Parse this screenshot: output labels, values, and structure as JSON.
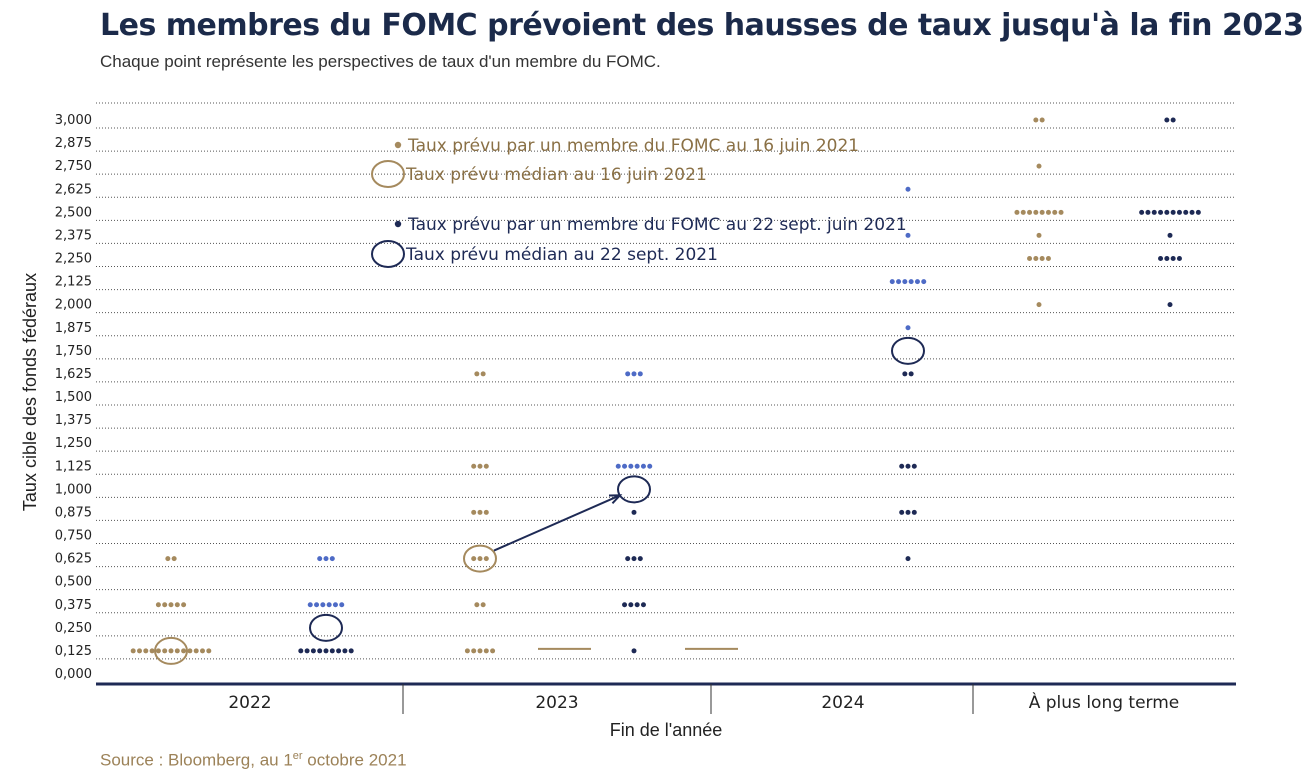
{
  "title": "Les membres du FOMC prévoient des hausses de taux jusqu'à la fin 2023",
  "subtitle": "Chaque point représente les perspectives de taux d'un membre du FOMC.",
  "source": {
    "text": "Source : Bloomberg, au 1",
    "sup": "er",
    "tail": " octobre 2021"
  },
  "colors": {
    "june": "#a58a5e",
    "sept": "#1e2a55",
    "sept_light": "#4e6bc6",
    "grid": "#555555",
    "axis": "#1e2a55"
  },
  "chart_data": {
    "type": "scatter",
    "title": "Les membres du FOMC prévoient des hausses de taux jusqu'à la fin 2023",
    "subtitle": "Chaque point représente les perspectives de taux d'un membre du FOMC.",
    "xlabel": "Fin de l'année",
    "ylabel": "Taux cible des fonds fédéraux",
    "categories": [
      "2022",
      "2023",
      "2024",
      "À plus long terme"
    ],
    "ylim": [
      0,
      3
    ],
    "yticks": [
      "0,000",
      "0,125",
      "0,250",
      "0,375",
      "0,500",
      "0,625",
      "0,750",
      "0,875",
      "1,000",
      "1,125",
      "1,250",
      "1,375",
      "1,500",
      "1,625",
      "1,750",
      "1,875",
      "2,000",
      "2,125",
      "2,250",
      "2,375",
      "2,500",
      "2,625",
      "2,750",
      "2,875",
      "3,000"
    ],
    "grid": true,
    "legend": [
      {
        "label": "Taux prévu par un membre du FOMC au 16 juin 2021",
        "kind": "dot",
        "series": "june"
      },
      {
        "label": "Taux prévu médian au 16 juin 2021",
        "kind": "ring",
        "series": "june"
      },
      {
        "label": "Taux prévu par un membre du FOMC au 22 sept. juin 2021",
        "kind": "dot",
        "series": "sept"
      },
      {
        "label": "Taux prévu médian au 22 sept. 2021",
        "kind": "ring",
        "series": "sept"
      }
    ],
    "series": [
      {
        "id": "june",
        "points": [
          {
            "category": "2022",
            "y": 0.125,
            "count": 13
          },
          {
            "category": "2022",
            "y": 0.375,
            "count": 5
          },
          {
            "category": "2022",
            "y": 0.625,
            "count": 2
          },
          {
            "category": "2023",
            "y": 0.125,
            "count": 5
          },
          {
            "category": "2023",
            "y": 0.375,
            "count": 2
          },
          {
            "category": "2023",
            "y": 0.625,
            "count": 3
          },
          {
            "category": "2023",
            "y": 0.875,
            "count": 3
          },
          {
            "category": "2023",
            "y": 1.125,
            "count": 3
          },
          {
            "category": "2023",
            "y": 1.625,
            "count": 2
          },
          {
            "category": "À plus long terme",
            "y": 2.0,
            "count": 1
          },
          {
            "category": "À plus long terme",
            "y": 2.25,
            "count": 4
          },
          {
            "category": "À plus long terme",
            "y": 2.375,
            "count": 1
          },
          {
            "category": "À plus long terme",
            "y": 2.5,
            "count": 8
          },
          {
            "category": "À plus long terme",
            "y": 2.75,
            "count": 1
          },
          {
            "category": "À plus long terme",
            "y": 3.0,
            "count": 2
          }
        ]
      },
      {
        "id": "sept",
        "points": [
          {
            "category": "2022",
            "y": 0.125,
            "count": 9,
            "shade": "dark"
          },
          {
            "category": "2022",
            "y": 0.375,
            "count": 6,
            "shade": "light"
          },
          {
            "category": "2022",
            "y": 0.625,
            "count": 3,
            "shade": "light"
          },
          {
            "category": "2023",
            "y": 0.125,
            "count": 1,
            "shade": "dark"
          },
          {
            "category": "2023",
            "y": 0.375,
            "count": 4,
            "shade": "dark"
          },
          {
            "category": "2023",
            "y": 0.625,
            "count": 3,
            "shade": "dark"
          },
          {
            "category": "2023",
            "y": 0.875,
            "count": 1,
            "shade": "dark"
          },
          {
            "category": "2023",
            "y": 1.125,
            "count": 6,
            "shade": "light"
          },
          {
            "category": "2023",
            "y": 1.625,
            "count": 3,
            "shade": "light"
          },
          {
            "category": "2024",
            "y": 0.625,
            "count": 1,
            "shade": "dark"
          },
          {
            "category": "2024",
            "y": 0.875,
            "count": 3,
            "shade": "dark"
          },
          {
            "category": "2024",
            "y": 1.125,
            "count": 3,
            "shade": "dark"
          },
          {
            "category": "2024",
            "y": 1.625,
            "count": 2,
            "shade": "dark"
          },
          {
            "category": "2024",
            "y": 1.875,
            "count": 1,
            "shade": "light"
          },
          {
            "category": "2024",
            "y": 2.125,
            "count": 6,
            "shade": "light"
          },
          {
            "category": "2024",
            "y": 2.375,
            "count": 1,
            "shade": "light"
          },
          {
            "category": "2024",
            "y": 2.625,
            "count": 1,
            "shade": "light"
          },
          {
            "category": "À plus long terme",
            "y": 2.0,
            "count": 1,
            "shade": "dark"
          },
          {
            "category": "À plus long terme",
            "y": 2.25,
            "count": 4,
            "shade": "dark"
          },
          {
            "category": "À plus long terme",
            "y": 2.375,
            "count": 1,
            "shade": "dark"
          },
          {
            "category": "À plus long terme",
            "y": 2.5,
            "count": 10,
            "shade": "dark"
          },
          {
            "category": "À plus long terme",
            "y": 3.0,
            "count": 2,
            "shade": "dark"
          }
        ]
      }
    ],
    "medians": [
      {
        "series": "june",
        "category": "2022",
        "y": 0.125
      },
      {
        "series": "sept",
        "category": "2022",
        "y": 0.25
      },
      {
        "series": "june",
        "category": "2023",
        "y": 0.625
      },
      {
        "series": "sept",
        "category": "2023",
        "y": 1.0
      },
      {
        "series": "sept",
        "category": "2024",
        "y": 1.75
      }
    ],
    "annotations": [
      {
        "type": "arrow",
        "from": {
          "category": "2023",
          "series": "june",
          "y": 0.625
        },
        "to": {
          "category": "2023",
          "series": "sept",
          "y": 1.0
        }
      },
      {
        "type": "dash",
        "category": "2023",
        "y": 0.125
      },
      {
        "type": "dash",
        "category": "2024",
        "y": 0.125
      }
    ]
  }
}
